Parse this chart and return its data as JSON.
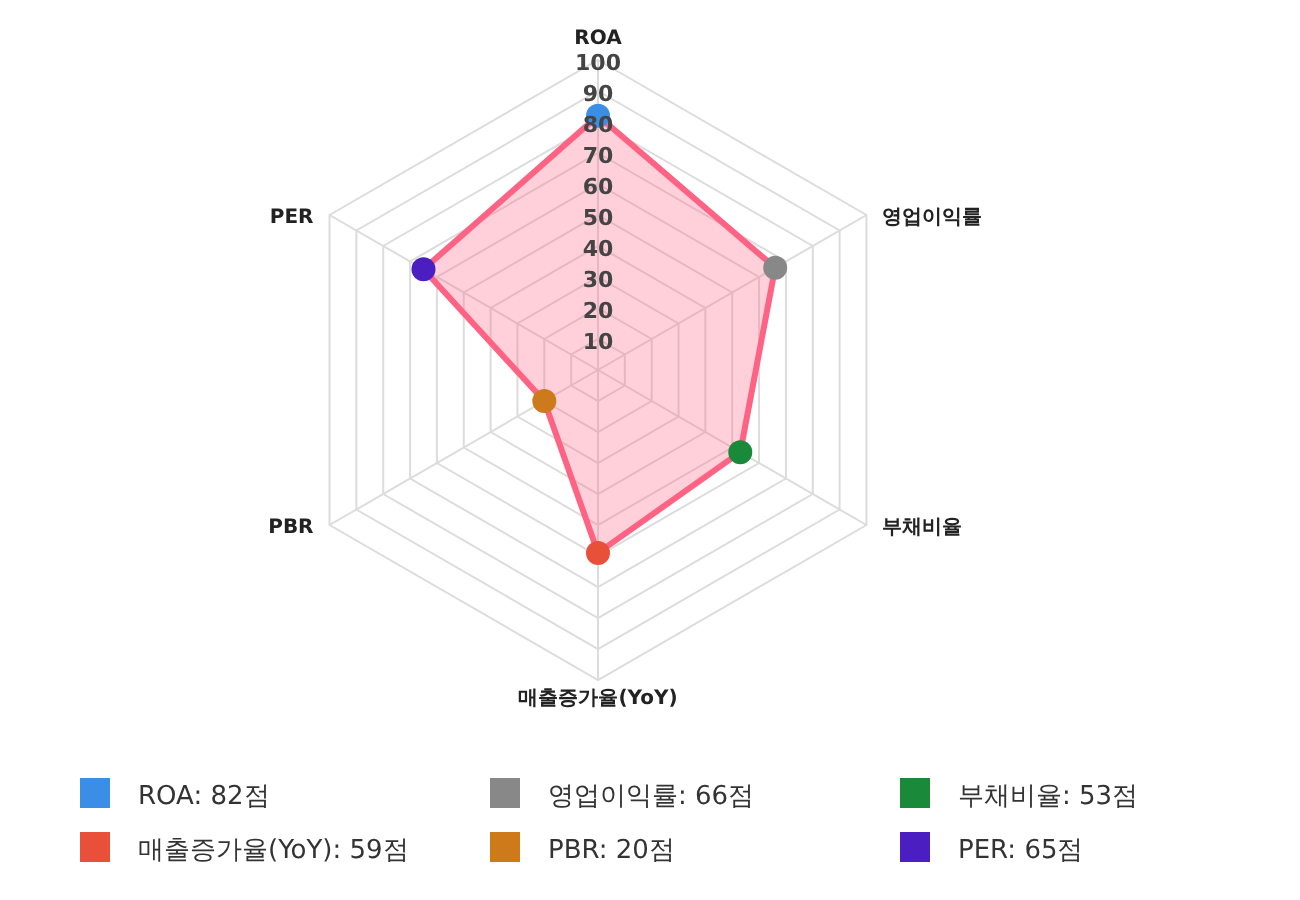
{
  "chart_data": {
    "type": "radar",
    "categories": [
      "ROA",
      "영업이익률",
      "부채비율",
      "매출증가율(YoY)",
      "PBR",
      "PER"
    ],
    "series": [
      {
        "color": "#ff6384",
        "values": [
          82,
          66,
          53,
          59,
          20,
          65
        ],
        "colors": [
          "#3a8ee6",
          "#888888",
          "#1a8a3a",
          "#e8503a",
          "#cc7a1a",
          "#4a1ec0"
        ]
      }
    ],
    "ylim": [
      0,
      100
    ],
    "yticks": [
      10,
      20,
      30,
      40,
      50,
      60,
      70,
      80,
      90,
      100
    ],
    "grid": true,
    "marker": "circle",
    "line_style": "solid",
    "annotations": [
      "ROA: 82점",
      "영업이익률: 66점",
      "부채비율: 53점",
      "매출증가율(YoY): 59점",
      "PBR: 20점",
      "PER: 65점"
    ]
  }
}
